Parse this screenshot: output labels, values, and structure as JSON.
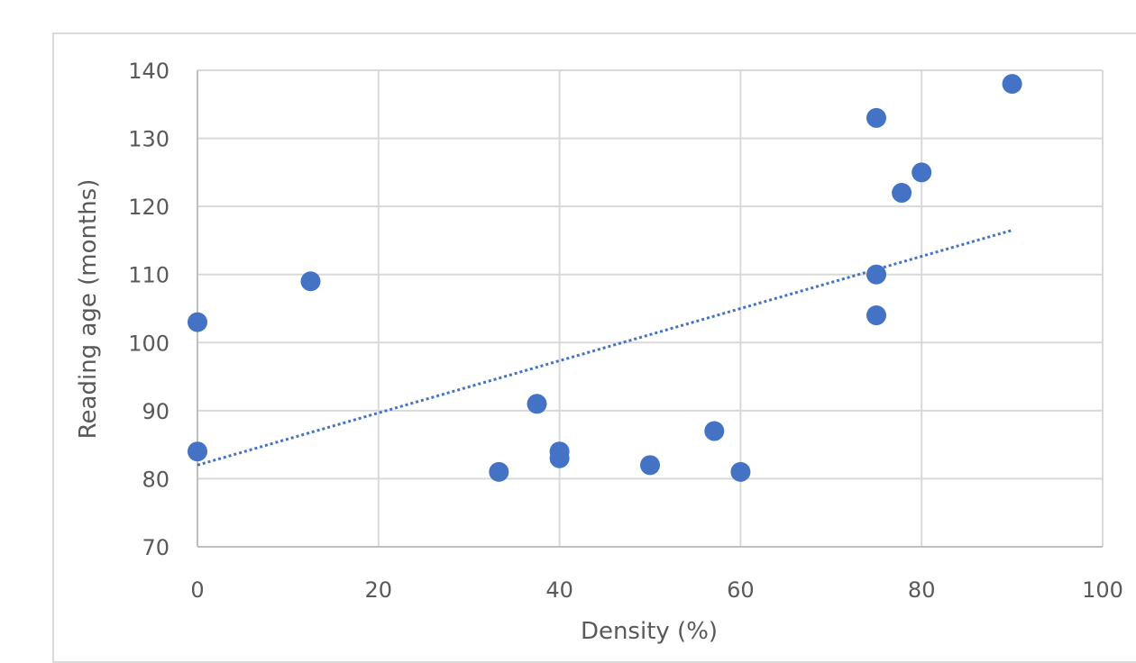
{
  "chart_data": {
    "type": "scatter",
    "title": "",
    "xlabel": "Density (%)",
    "ylabel": "Reading age (months)",
    "xlim": [
      0,
      100
    ],
    "ylim": [
      70,
      140
    ],
    "xticks": [
      0,
      20,
      40,
      60,
      80,
      100
    ],
    "yticks": [
      70,
      80,
      90,
      100,
      110,
      120,
      130,
      140
    ],
    "grid": true,
    "legend": "none",
    "colors": {
      "points": "#4472c4",
      "trendline": "#4472c4",
      "grid": "#d9d9d9",
      "axis": "#bfbfbf",
      "text": "#595959"
    },
    "series": [
      {
        "x": [
          0,
          0,
          12.5,
          33.3,
          37.5,
          40,
          40,
          50,
          57.1,
          60,
          75,
          75,
          75,
          77.8,
          80,
          90
        ],
        "y": [
          103,
          84,
          109,
          81,
          91,
          84,
          83,
          82,
          87,
          81,
          133,
          110,
          104,
          122,
          125,
          138
        ]
      }
    ],
    "trendline": {
      "type": "linear",
      "style": "dotted",
      "x_range": [
        0,
        90
      ],
      "y_range": [
        82,
        116.5
      ]
    }
  }
}
